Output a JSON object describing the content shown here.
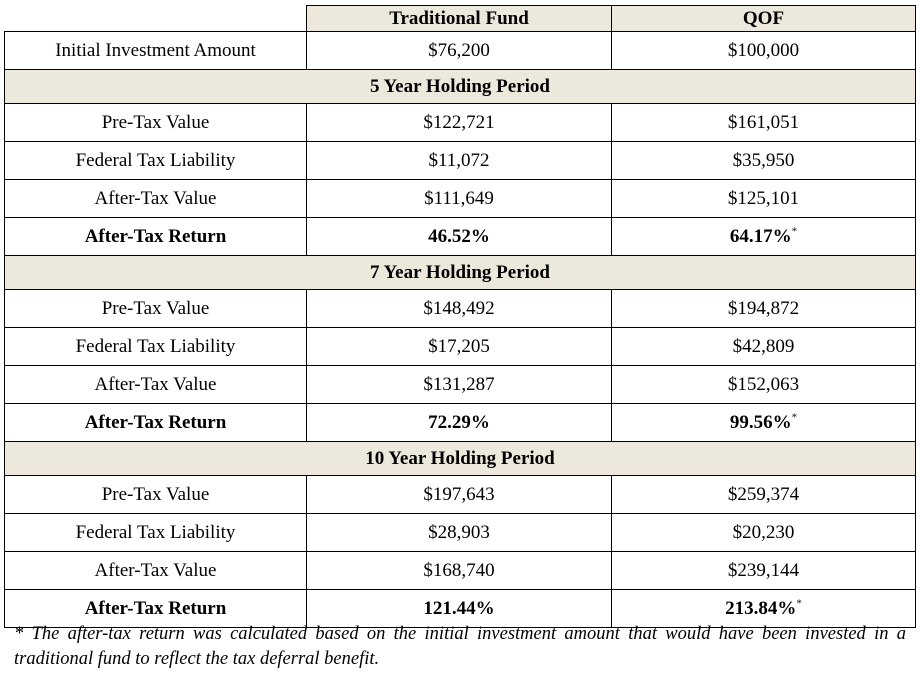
{
  "table": {
    "columns": [
      "",
      "Traditional Fund",
      "QOF"
    ],
    "initial": {
      "label": "Initial Investment Amount",
      "traditional": "$76,200",
      "qof": "$100,000"
    },
    "periods": [
      {
        "title": "5 Year Holding Period",
        "rows": [
          {
            "label": "Pre-Tax Value",
            "traditional": "$122,721",
            "qof": "$161,051"
          },
          {
            "label": "Federal Tax Liability",
            "traditional": "$11,072",
            "qof": "$35,950"
          },
          {
            "label": "After-Tax Value",
            "traditional": "$111,649",
            "qof": "$125,101"
          },
          {
            "label": "After-Tax Return",
            "traditional": "46.52%",
            "qof": "64.17%",
            "qof_mark": "*"
          }
        ]
      },
      {
        "title": "7 Year Holding Period",
        "rows": [
          {
            "label": "Pre-Tax Value",
            "traditional": "$148,492",
            "qof": "$194,872"
          },
          {
            "label": "Federal Tax Liability",
            "traditional": "$17,205",
            "qof": "$42,809"
          },
          {
            "label": "After-Tax Value",
            "traditional": "$131,287",
            "qof": "$152,063"
          },
          {
            "label": "After-Tax Return",
            "traditional": "72.29%",
            "qof": "99.56%",
            "qof_mark": "*"
          }
        ]
      },
      {
        "title": "10 Year Holding Period",
        "rows": [
          {
            "label": "Pre-Tax Value",
            "traditional": "$197,643",
            "qof": "$259,374"
          },
          {
            "label": "Federal Tax Liability",
            "traditional": "$28,903",
            "qof": "$20,230"
          },
          {
            "label": "After-Tax Value",
            "traditional": "$168,740",
            "qof": "$239,144"
          },
          {
            "label": "After-Tax Return",
            "traditional": "121.44%",
            "qof": "213.84%",
            "qof_mark": "*"
          }
        ]
      }
    ]
  },
  "footnote": "* The after-tax return was calculated based on the initial investment amount that would have been invested in a traditional fund to reflect the tax deferral benefit.",
  "colors": {
    "header_fill": "#ece8dc",
    "border": "#000000"
  }
}
